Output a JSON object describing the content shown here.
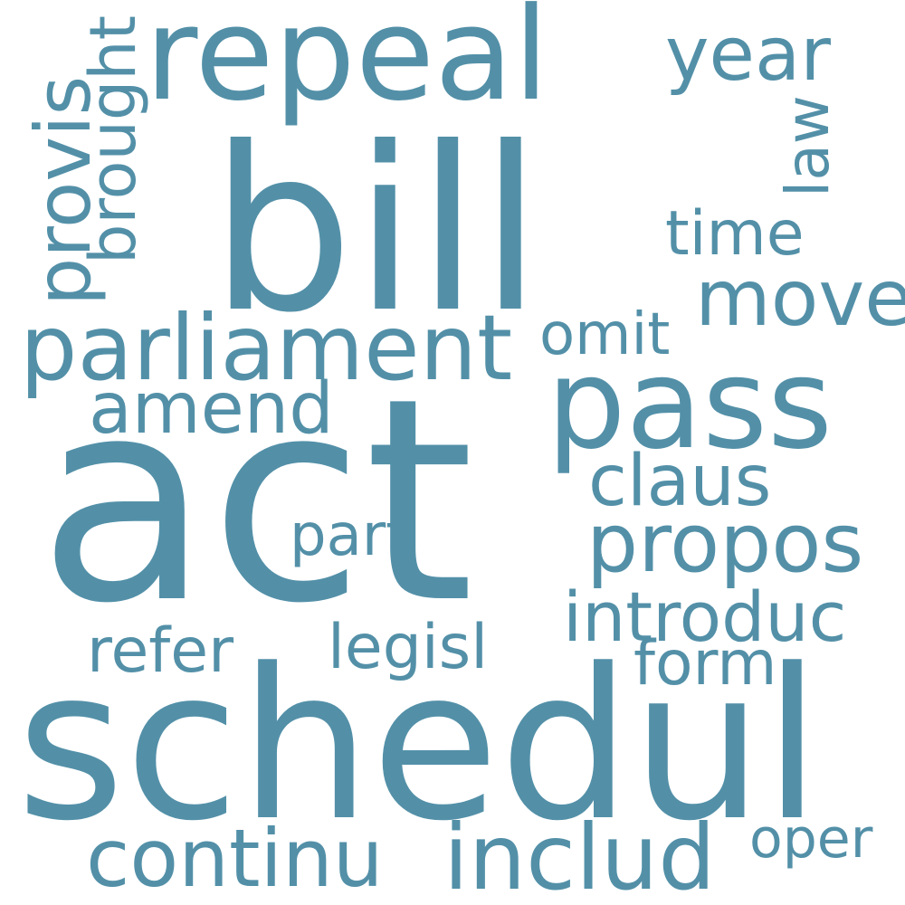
{
  "color": "#5390a8",
  "background": "#ffffff",
  "words": {
    "act": "act",
    "schedul": "schedul",
    "bill": "bill",
    "repeal": "repeal",
    "pass": "pass",
    "parliament": "parliament",
    "propos": "propos",
    "includ": "includ",
    "continu": "continu",
    "move": "move",
    "provis": "provis",
    "year": "year",
    "amend": "amend",
    "claus": "claus",
    "introduc": "introduc",
    "brought": "brought",
    "time": "time",
    "refer": "refer",
    "legisl": "legisl",
    "form": "form",
    "omit": "omit",
    "part": "part",
    "law": "law",
    "oper": "oper"
  }
}
